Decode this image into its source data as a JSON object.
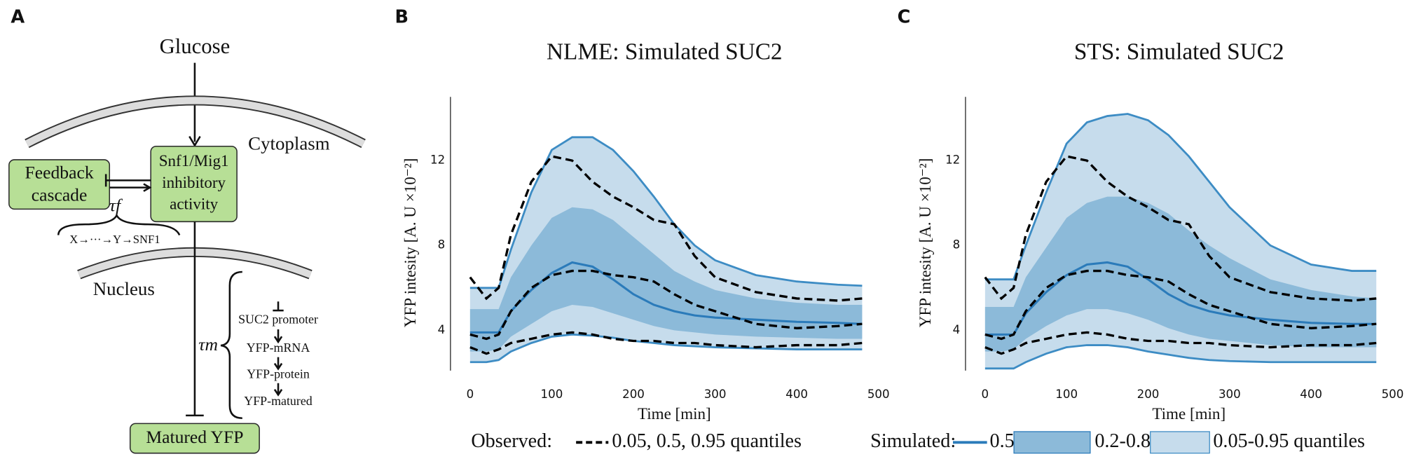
{
  "panel_labels": [
    "A",
    "B",
    "C"
  ],
  "diagram": {
    "input": "Glucose",
    "compartments": [
      "Cytoplasm",
      "Nucleus"
    ],
    "nodes": [
      {
        "lines": [
          "Feedback",
          "cascade"
        ]
      },
      {
        "lines": [
          "Snf1/Mig1",
          "inhibitory",
          "activity"
        ]
      },
      {
        "lines": [
          "Matured YFP"
        ]
      }
    ],
    "delays": [
      {
        "symbol": "τf",
        "chain": "X→···→Y→SNF1"
      },
      {
        "symbol": "τm",
        "steps": [
          "SUC2 promoter",
          "YFP-mRNA",
          "YFP-protein",
          "YFP-matured"
        ]
      }
    ]
  },
  "chart_data": [
    {
      "type": "band-line",
      "title": "NLME: Simulated SUC2",
      "xlabel": "Time [min]",
      "ylabel": "YFP intesity [A. U ×10⁻²]",
      "x": [
        0,
        20,
        35,
        50,
        75,
        100,
        125,
        150,
        175,
        200,
        225,
        250,
        275,
        300,
        350,
        400,
        450,
        480
      ],
      "xlim": [
        -24,
        500
      ],
      "ylim": [
        2.1,
        15
      ],
      "xticks": [
        0,
        100,
        200,
        300,
        400,
        500
      ],
      "yticks": [
        4,
        8,
        12
      ],
      "bands": [
        {
          "color": "#c6dcec",
          "outline": "#3d8cc4",
          "upper": [
            6.0,
            6.0,
            6.0,
            7.8,
            10.5,
            12.5,
            13.1,
            13.1,
            12.5,
            11.5,
            10.3,
            9.0,
            8.0,
            7.3,
            6.6,
            6.3,
            6.15,
            6.1
          ],
          "lower": [
            2.5,
            2.5,
            2.6,
            3.0,
            3.4,
            3.7,
            3.8,
            3.75,
            3.65,
            3.5,
            3.4,
            3.3,
            3.25,
            3.2,
            3.15,
            3.1,
            3.1,
            3.1
          ]
        },
        {
          "color": "#8cbad9",
          "upper": [
            5.0,
            5.0,
            5.0,
            6.5,
            8.0,
            9.3,
            9.8,
            9.7,
            9.2,
            8.4,
            7.6,
            6.8,
            6.3,
            5.9,
            5.5,
            5.3,
            5.2,
            5.2
          ],
          "lower": [
            3.0,
            3.0,
            3.1,
            3.7,
            4.3,
            4.9,
            5.2,
            5.1,
            4.8,
            4.5,
            4.2,
            4.0,
            3.9,
            3.8,
            3.7,
            3.65,
            3.6,
            3.6
          ]
        }
      ],
      "series": [
        {
          "color": "#2b7bba",
          "style": "solid",
          "values": [
            3.9,
            3.9,
            3.9,
            4.9,
            5.9,
            6.7,
            7.2,
            7.0,
            6.4,
            5.7,
            5.2,
            4.9,
            4.7,
            4.6,
            4.5,
            4.4,
            4.35,
            4.3
          ]
        },
        {
          "color": "#000000",
          "style": "dashed",
          "values": [
            6.5,
            5.5,
            6.0,
            8.5,
            11.0,
            12.2,
            12.0,
            11.0,
            10.3,
            9.8,
            9.2,
            9.0,
            7.5,
            6.5,
            5.8,
            5.5,
            5.4,
            5.5
          ]
        },
        {
          "color": "#000000",
          "style": "dashed",
          "values": [
            3.8,
            3.6,
            3.8,
            4.9,
            6.0,
            6.6,
            6.8,
            6.8,
            6.6,
            6.5,
            6.3,
            5.7,
            5.2,
            4.9,
            4.3,
            4.1,
            4.2,
            4.3
          ]
        },
        {
          "color": "#000000",
          "style": "dashed",
          "values": [
            3.2,
            2.9,
            3.1,
            3.4,
            3.6,
            3.8,
            3.9,
            3.8,
            3.6,
            3.5,
            3.5,
            3.4,
            3.4,
            3.3,
            3.2,
            3.3,
            3.3,
            3.4
          ]
        }
      ]
    },
    {
      "type": "band-line",
      "title": "STS: Simulated SUC2",
      "xlabel": "Time [min]",
      "ylabel": "YFP intesity [A. U ×10⁻²]",
      "x": [
        0,
        20,
        35,
        50,
        75,
        100,
        125,
        150,
        175,
        200,
        225,
        250,
        275,
        300,
        350,
        400,
        450,
        480
      ],
      "xlim": [
        -24,
        500
      ],
      "ylim": [
        2.1,
        15
      ],
      "xticks": [
        0,
        100,
        200,
        300,
        400,
        500
      ],
      "yticks": [
        4,
        8,
        12
      ],
      "bands": [
        {
          "color": "#c6dcec",
          "outline": "#3d8cc4",
          "upper": [
            6.4,
            6.4,
            6.4,
            8.0,
            10.5,
            12.8,
            13.8,
            14.1,
            14.2,
            13.9,
            13.2,
            12.2,
            11.0,
            9.8,
            8.0,
            7.1,
            6.8,
            6.8
          ],
          "lower": [
            2.2,
            2.2,
            2.2,
            2.5,
            2.9,
            3.2,
            3.3,
            3.3,
            3.2,
            3.0,
            2.85,
            2.7,
            2.6,
            2.55,
            2.5,
            2.5,
            2.5,
            2.5
          ]
        },
        {
          "color": "#8cbad9",
          "upper": [
            5.1,
            5.1,
            5.1,
            6.5,
            7.9,
            9.3,
            10.0,
            10.3,
            10.3,
            10.0,
            9.5,
            8.7,
            8.0,
            7.4,
            6.4,
            5.9,
            5.6,
            5.5
          ],
          "lower": [
            3.0,
            3.0,
            3.1,
            3.6,
            4.2,
            4.7,
            5.0,
            5.0,
            4.8,
            4.5,
            4.1,
            3.8,
            3.6,
            3.5,
            3.3,
            3.2,
            3.2,
            3.2
          ]
        }
      ],
      "series": [
        {
          "color": "#2b7bba",
          "style": "solid",
          "values": [
            3.8,
            3.8,
            3.8,
            4.8,
            5.8,
            6.6,
            7.1,
            7.2,
            7.0,
            6.4,
            5.7,
            5.2,
            4.9,
            4.7,
            4.5,
            4.35,
            4.3,
            4.3
          ]
        },
        {
          "color": "#000000",
          "style": "dashed",
          "values": [
            6.5,
            5.5,
            6.0,
            8.5,
            11.0,
            12.2,
            12.0,
            11.0,
            10.3,
            9.8,
            9.2,
            9.0,
            7.5,
            6.5,
            5.8,
            5.5,
            5.4,
            5.5
          ]
        },
        {
          "color": "#000000",
          "style": "dashed",
          "values": [
            3.8,
            3.6,
            3.8,
            4.9,
            6.0,
            6.6,
            6.8,
            6.8,
            6.6,
            6.5,
            6.3,
            5.7,
            5.2,
            4.9,
            4.3,
            4.1,
            4.2,
            4.3
          ]
        },
        {
          "color": "#000000",
          "style": "dashed",
          "values": [
            3.2,
            2.9,
            3.1,
            3.4,
            3.6,
            3.8,
            3.9,
            3.8,
            3.6,
            3.5,
            3.5,
            3.4,
            3.4,
            3.3,
            3.2,
            3.3,
            3.3,
            3.4
          ]
        }
      ]
    }
  ],
  "legend": {
    "observed": {
      "label": "Observed:",
      "entry": "0.05, 0.5, 0.95 quantiles",
      "color": "#000000"
    },
    "simulated": {
      "label": "Simulated:",
      "entries": [
        "0.5",
        "0.2-0.8",
        "0.05-0.95 quantiles"
      ],
      "colors": [
        "#2b7bba",
        "#8cbad9",
        "#c6dcec"
      ]
    }
  }
}
